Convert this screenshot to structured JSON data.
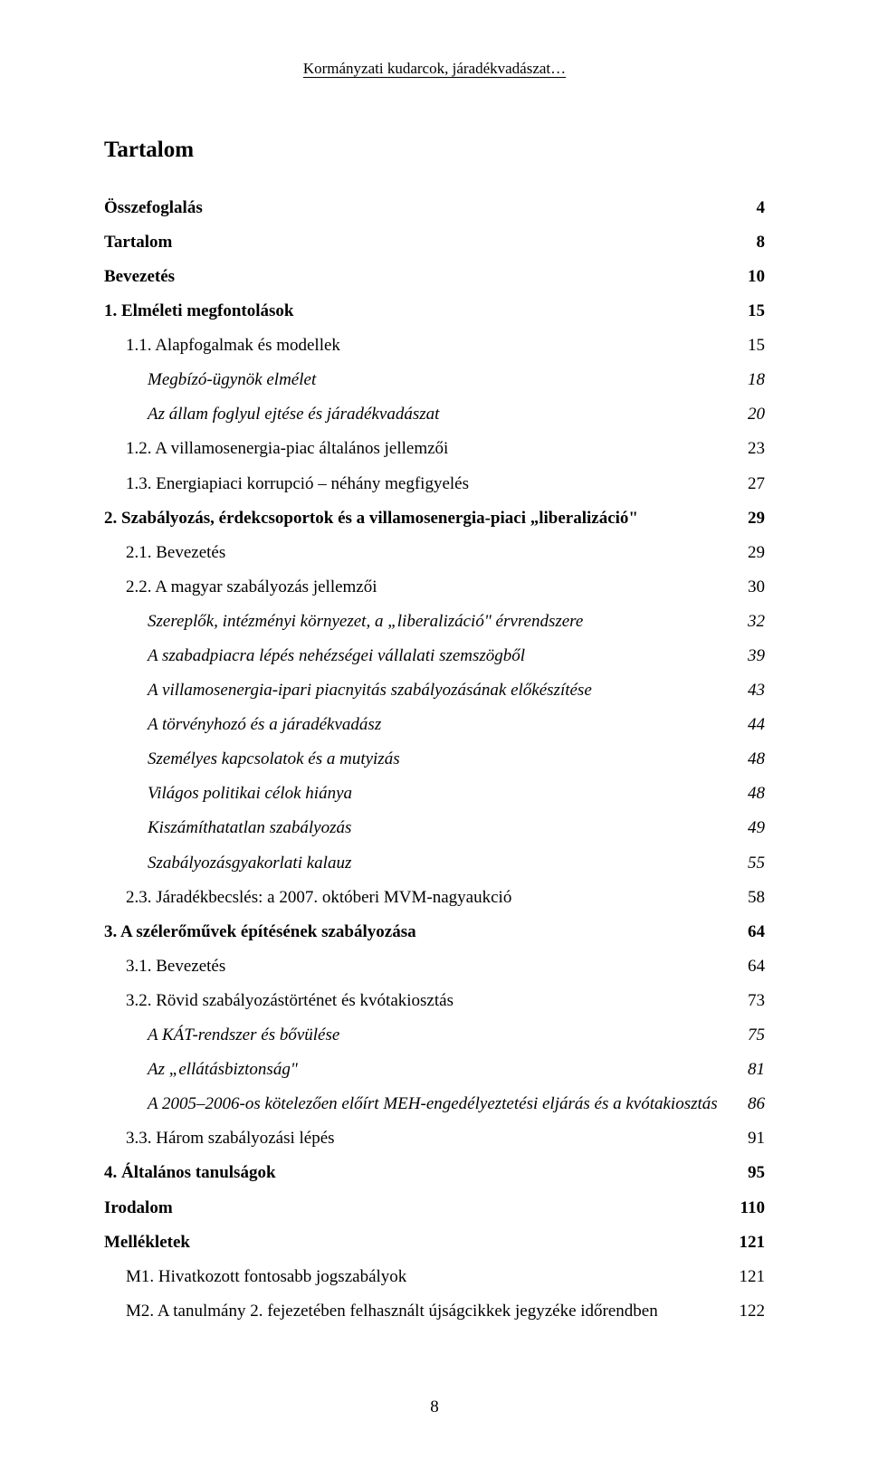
{
  "running_header": "Kormányzati kudarcok, járadékvadászat…",
  "toc_title": "Tartalom",
  "entries": [
    {
      "label": "Összefoglalás",
      "page": "4",
      "bold": true,
      "italic": false,
      "indent": 0
    },
    {
      "label": "Tartalom",
      "page": "8",
      "bold": true,
      "italic": false,
      "indent": 0
    },
    {
      "label": "Bevezetés",
      "page": "10",
      "bold": true,
      "italic": false,
      "indent": 0
    },
    {
      "label": "1. Elméleti megfontolások",
      "page": "15",
      "bold": true,
      "italic": false,
      "indent": 0
    },
    {
      "label": "1.1. Alapfogalmak és modellek",
      "page": "15",
      "bold": false,
      "italic": false,
      "indent": 1
    },
    {
      "label": "Megbízó-ügynök elmélet",
      "page": "18",
      "bold": false,
      "italic": true,
      "indent": 2
    },
    {
      "label": "Az állam foglyul ejtése és járadékvadászat",
      "page": "20",
      "bold": false,
      "italic": true,
      "indent": 2
    },
    {
      "label": "1.2. A villamosenergia-piac általános jellemzői",
      "page": "23",
      "bold": false,
      "italic": false,
      "indent": 1
    },
    {
      "label": "1.3. Energiapiaci korrupció – néhány megfigyelés",
      "page": "27",
      "bold": false,
      "italic": false,
      "indent": 1
    },
    {
      "label": "2. Szabályozás, érdekcsoportok és a villamosenergia-piaci „liberalizáció\"",
      "page": "29",
      "bold": true,
      "italic": false,
      "indent": 0
    },
    {
      "label": "2.1. Bevezetés",
      "page": "29",
      "bold": false,
      "italic": false,
      "indent": 1
    },
    {
      "label": "2.2. A magyar szabályozás jellemzői",
      "page": "30",
      "bold": false,
      "italic": false,
      "indent": 1
    },
    {
      "label": "Szereplők, intézményi környezet, a „liberalizáció\" érvrendszere",
      "page": "32",
      "bold": false,
      "italic": true,
      "indent": 2
    },
    {
      "label": "A szabadpiacra lépés nehézségei vállalati szemszögből",
      "page": "39",
      "bold": false,
      "italic": true,
      "indent": 2
    },
    {
      "label": "A villamosenergia-ipari piacnyitás szabályozásának előkészítése",
      "page": "43",
      "bold": false,
      "italic": true,
      "indent": 2
    },
    {
      "label": "A törvényhozó és a járadékvadász",
      "page": "44",
      "bold": false,
      "italic": true,
      "indent": 2
    },
    {
      "label": "Személyes kapcsolatok és a mutyizás",
      "page": "48",
      "bold": false,
      "italic": true,
      "indent": 2
    },
    {
      "label": "Világos politikai célok hiánya",
      "page": "48",
      "bold": false,
      "italic": true,
      "indent": 2
    },
    {
      "label": "Kiszámíthatatlan szabályozás",
      "page": "49",
      "bold": false,
      "italic": true,
      "indent": 2
    },
    {
      "label": "Szabályozásgyakorlati kalauz",
      "page": "55",
      "bold": false,
      "italic": true,
      "indent": 2
    },
    {
      "label": "2.3. Járadékbecslés: a 2007. októberi MVM-nagyaukció",
      "page": "58",
      "bold": false,
      "italic": false,
      "indent": 1
    },
    {
      "label": "3. A szélerőművek építésének szabályozása",
      "page": "64",
      "bold": true,
      "italic": false,
      "indent": 0
    },
    {
      "label": "3.1. Bevezetés",
      "page": "64",
      "bold": false,
      "italic": false,
      "indent": 1
    },
    {
      "label": "3.2. Rövid szabályozástörténet és kvótakiosztás",
      "page": "73",
      "bold": false,
      "italic": false,
      "indent": 1
    },
    {
      "label": "A KÁT-rendszer és bővülése",
      "page": "75",
      "bold": false,
      "italic": true,
      "indent": 2
    },
    {
      "label": "Az „ellátásbiztonság\"",
      "page": "81",
      "bold": false,
      "italic": true,
      "indent": 2
    },
    {
      "label": "A 2005–2006-os kötelezően előírt MEH-engedélyeztetési eljárás és a kvótakiosztás",
      "page": "86",
      "bold": false,
      "italic": true,
      "indent": 2
    },
    {
      "label": "3.3. Három szabályozási lépés",
      "page": "91",
      "bold": false,
      "italic": false,
      "indent": 1
    },
    {
      "label": "4. Általános tanulságok",
      "page": "95",
      "bold": true,
      "italic": false,
      "indent": 0
    },
    {
      "label": "Irodalom",
      "page": "110",
      "bold": true,
      "italic": false,
      "indent": 0
    },
    {
      "label": "Mellékletek",
      "page": "121",
      "bold": true,
      "italic": false,
      "indent": 0
    },
    {
      "label": "M1. Hivatkozott fontosabb jogszabályok",
      "page": "121",
      "bold": false,
      "italic": false,
      "indent": 1
    },
    {
      "label": "M2. A tanulmány 2. fejezetében felhasznált újságcikkek jegyzéke időrendben",
      "page": "122",
      "bold": false,
      "italic": false,
      "indent": 1
    }
  ],
  "page_number": "8"
}
